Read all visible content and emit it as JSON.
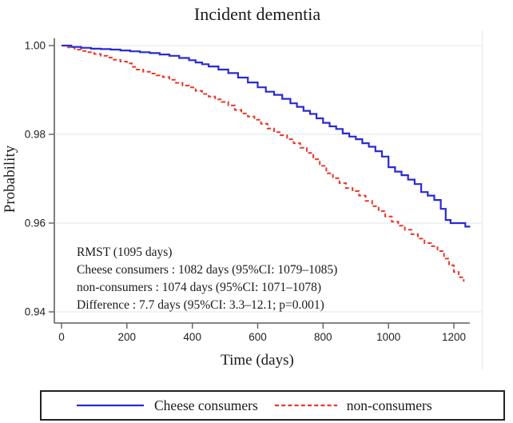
{
  "title": "Incident dementia",
  "axes": {
    "ylabel": "Probability",
    "xlabel": "Time (days)",
    "ytick_labels": [
      "1.00",
      "0.98",
      "0.96",
      "0.94"
    ],
    "xtick_labels": [
      "0",
      "200",
      "400",
      "600",
      "800",
      "1000",
      "1200"
    ]
  },
  "annotation": {
    "line1": "RMST (1095 days)",
    "line2": "Cheese consumers : 1082 days (95%CI: 1079–1085)",
    "line3": "non-consumers : 1074 days (95%CI: 1071–1078)",
    "line4": "Difference : 7.7 days (95%CI: 3.3–12.1; p=0.001)"
  },
  "legend": {
    "items": [
      {
        "label": "Cheese consumers",
        "color": "#2a2ad4",
        "style": "solid"
      },
      {
        "label": "non-consumers",
        "color": "#ea372b",
        "style": "dashed"
      }
    ]
  },
  "colors": {
    "blue_line": "#2a2ad4",
    "red_line": "#ea372b",
    "gridline": "#e4edf0",
    "axis": "#5f5f5f",
    "text": "#1a1a1a"
  },
  "chart_data": {
    "type": "line",
    "subtype": "kaplan-meier-step",
    "title": "Incident dementia",
    "xlabel": "Time (days)",
    "ylabel": "Probability",
    "xlim": [
      0,
      1250
    ],
    "ylim": [
      0.94,
      1.0
    ],
    "xticks": [
      0,
      200,
      400,
      600,
      800,
      1000,
      1200
    ],
    "yticks": [
      1.0,
      0.98,
      0.96,
      0.94
    ],
    "grid": true,
    "legend_position": "bottom",
    "annotation_lines": [
      "RMST (1095 days)",
      "Cheese consumers : 1082 days (95%CI: 1079–1085)",
      "non-consumers : 1074 days (95%CI: 1071–1078)",
      "Difference : 7.7 days (95%CI: 3.3–12.1; p=0.001)"
    ],
    "series": [
      {
        "name": "Cheese consumers",
        "color": "#2a2ad4",
        "dash": "solid",
        "x": [
          0,
          30,
          60,
          90,
          120,
          150,
          180,
          210,
          240,
          270,
          300,
          330,
          360,
          390,
          410,
          430,
          450,
          480,
          510,
          540,
          570,
          600,
          625,
          650,
          675,
          700,
          720,
          740,
          760,
          780,
          800,
          820,
          840,
          860,
          880,
          900,
          920,
          940,
          960,
          980,
          1000,
          1020,
          1040,
          1060,
          1080,
          1100,
          1120,
          1140,
          1160,
          1175,
          1190,
          1235,
          1250
        ],
        "y": [
          1.0,
          0.9997,
          0.9995,
          0.9993,
          0.9992,
          0.9991,
          0.9989,
          0.9987,
          0.9985,
          0.9983,
          0.998,
          0.9977,
          0.9972,
          0.9967,
          0.9962,
          0.9958,
          0.9953,
          0.9946,
          0.9938,
          0.9928,
          0.9917,
          0.9906,
          0.9896,
          0.9889,
          0.988,
          0.987,
          0.9862,
          0.9853,
          0.9846,
          0.9836,
          0.9826,
          0.9818,
          0.9812,
          0.9802,
          0.9795,
          0.9789,
          0.978,
          0.9772,
          0.9762,
          0.975,
          0.9726,
          0.9716,
          0.9708,
          0.9698,
          0.9688,
          0.967,
          0.9662,
          0.9652,
          0.9632,
          0.9607,
          0.96,
          0.9592,
          0.9592
        ]
      },
      {
        "name": "non-consumers",
        "color": "#ea372b",
        "dash": "dashed",
        "x": [
          0,
          20,
          40,
          60,
          80,
          100,
          120,
          140,
          160,
          180,
          200,
          215,
          230,
          250,
          270,
          290,
          310,
          330,
          350,
          370,
          390,
          410,
          430,
          450,
          470,
          490,
          510,
          530,
          550,
          570,
          590,
          610,
          630,
          650,
          670,
          690,
          710,
          730,
          750,
          770,
          790,
          810,
          830,
          850,
          870,
          890,
          910,
          930,
          950,
          970,
          990,
          1010,
          1030,
          1050,
          1070,
          1090,
          1110,
          1130,
          1150,
          1170,
          1185,
          1200,
          1215,
          1230
        ],
        "y": [
          1.0,
          0.9996,
          0.9991,
          0.9988,
          0.9985,
          0.9981,
          0.9977,
          0.9973,
          0.9968,
          0.9964,
          0.996,
          0.9952,
          0.9946,
          0.9941,
          0.9937,
          0.9933,
          0.9929,
          0.9923,
          0.9916,
          0.991,
          0.9906,
          0.9898,
          0.9891,
          0.9885,
          0.9879,
          0.9873,
          0.9865,
          0.9855,
          0.9847,
          0.984,
          0.9833,
          0.9824,
          0.9813,
          0.9805,
          0.9798,
          0.9789,
          0.978,
          0.977,
          0.9758,
          0.9744,
          0.9729,
          0.9712,
          0.9701,
          0.969,
          0.9679,
          0.9672,
          0.9662,
          0.965,
          0.9638,
          0.9627,
          0.9615,
          0.9603,
          0.9594,
          0.9585,
          0.9575,
          0.9565,
          0.9555,
          0.9548,
          0.9537,
          0.952,
          0.9505,
          0.949,
          0.9478,
          0.9468
        ]
      }
    ]
  }
}
